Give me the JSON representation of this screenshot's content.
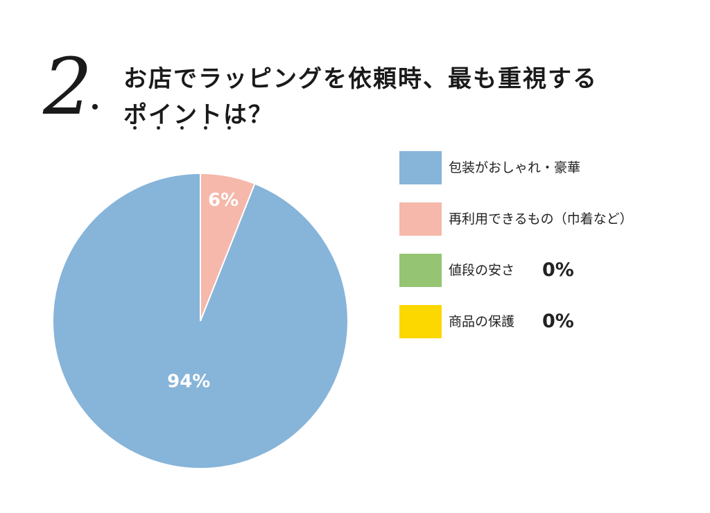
{
  "question": {
    "number": "2",
    "line1": "お店でラッピングを依頼時、最も重視する",
    "line2": "ポイントは？"
  },
  "chart_data": {
    "type": "pie",
    "start_angle_deg": 0,
    "direction": "counterclockwise",
    "slices": [
      {
        "label": "包装がおしゃれ・豪華",
        "value": 94,
        "display": "94%",
        "color": "#87b4d9",
        "text_color": "#ffffff"
      },
      {
        "label": "再利用できるもの（巾着など）",
        "value": 6,
        "display": "6%",
        "color": "#f5b8aa",
        "text_color": "#ffffff"
      },
      {
        "label": "値段の安さ",
        "value": 0,
        "display": "0%",
        "color": "#95c472",
        "text_color": "#222222"
      },
      {
        "label": "商品の保護",
        "value": 0,
        "display": "0%",
        "color": "#fcd700",
        "text_color": "#222222"
      }
    ]
  },
  "legend": [
    {
      "label": "包装がおしゃれ・豪華",
      "color": "#87b4d9",
      "pct": ""
    },
    {
      "label": "再利用できるもの（巾着など）",
      "color": "#f5b8aa",
      "pct": ""
    },
    {
      "label": "値段の安さ",
      "color": "#95c472",
      "pct": "0%"
    },
    {
      "label": "商品の保護",
      "color": "#fcd700",
      "pct": "0%"
    }
  ]
}
